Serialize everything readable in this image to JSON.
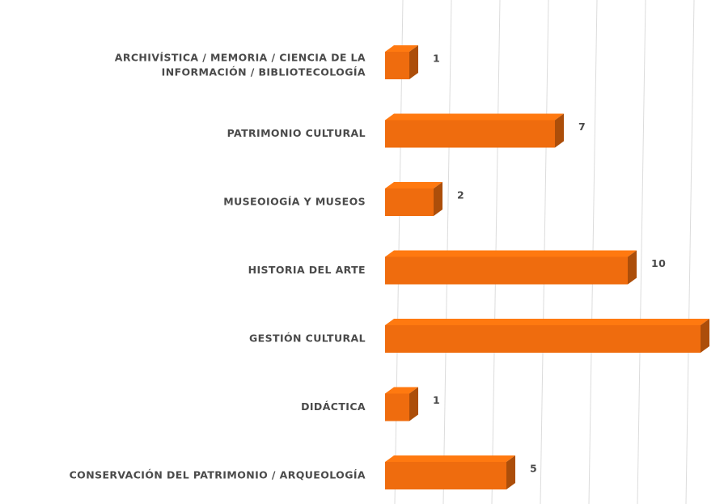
{
  "chart_data": {
    "type": "bar3d_horizontal",
    "categories": [
      [
        "ARCHIVÍSTICA / MEMORIA / CIENCIA DE LA",
        "INFORMACIÓN / BIBLIOTECOLOGÍA"
      ],
      "PATRIMONIO CULTURAL",
      "MUSEOIOGÍA Y MUSEOS",
      "HISTORIA DEL ARTE",
      "GESTIÓN CULTURAL",
      "DIDÁCTICA",
      "CONSERVACIÓN DEL PATRIMONIO / ARQUEOLOGÍA"
    ],
    "values": [
      1,
      7,
      2,
      10,
      13,
      1,
      5
    ],
    "color": "#ef6c0e",
    "xlim": [
      0,
      14
    ],
    "xticks": [
      0,
      2,
      4,
      6,
      8,
      10,
      12
    ],
    "grid": true
  }
}
